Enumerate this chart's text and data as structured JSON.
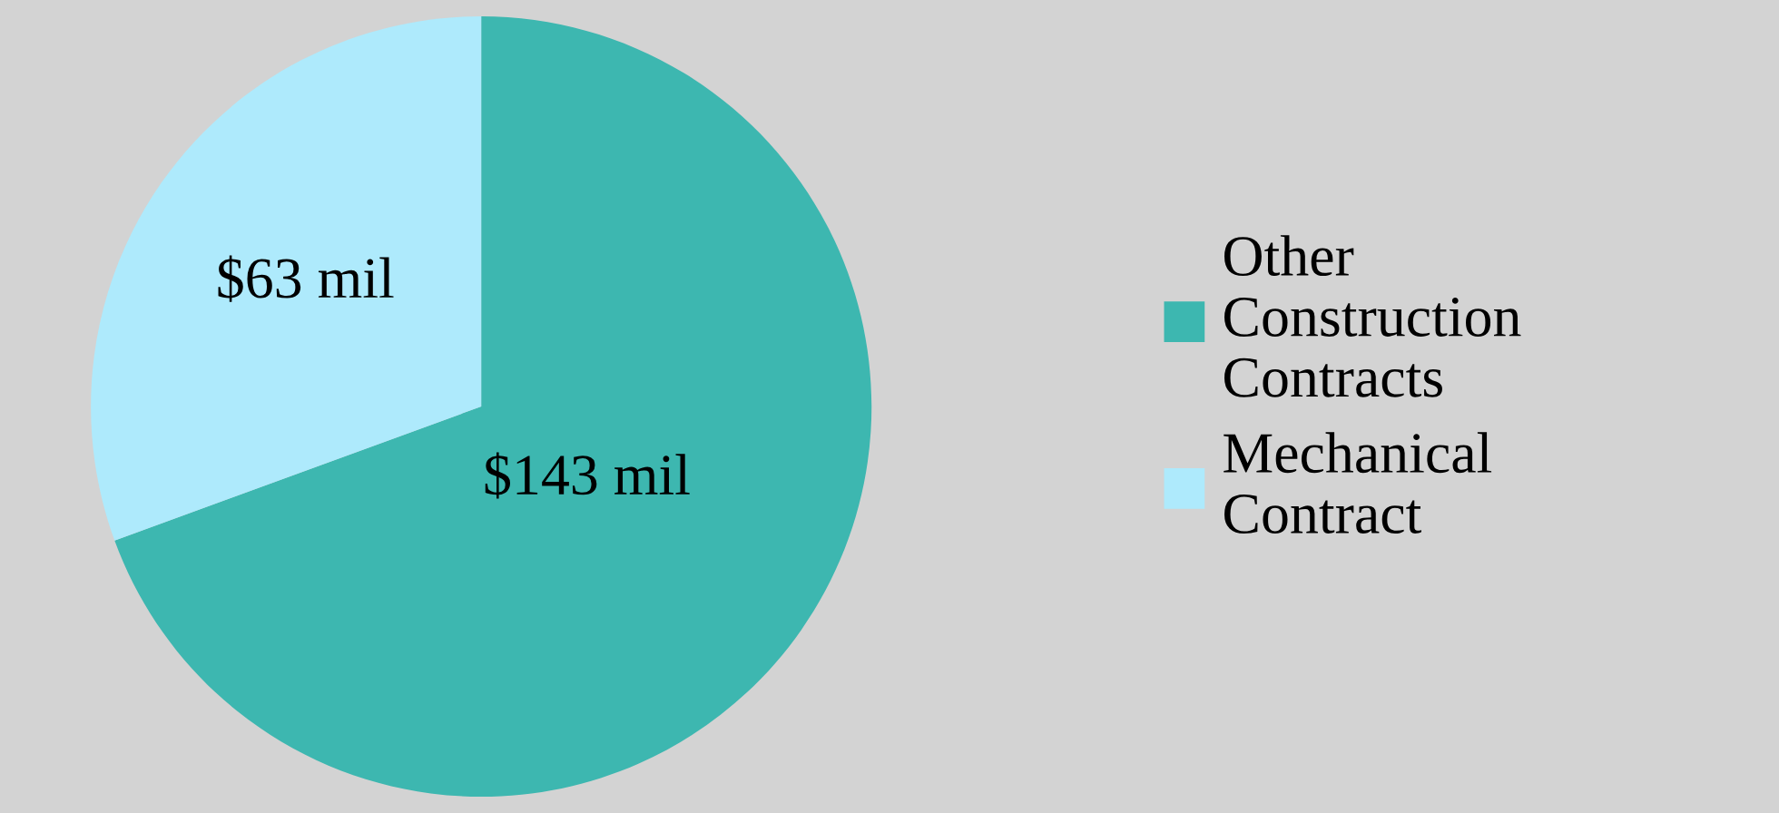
{
  "chart_data": {
    "type": "pie",
    "categories": [
      "Other Construction Contracts",
      "Mechanical Contract"
    ],
    "values": [
      143,
      63
    ],
    "colors": [
      "#3db7b0",
      "#aeeafc"
    ],
    "value_labels": [
      "$143 mil",
      "$63 mil"
    ],
    "legend": "right"
  }
}
